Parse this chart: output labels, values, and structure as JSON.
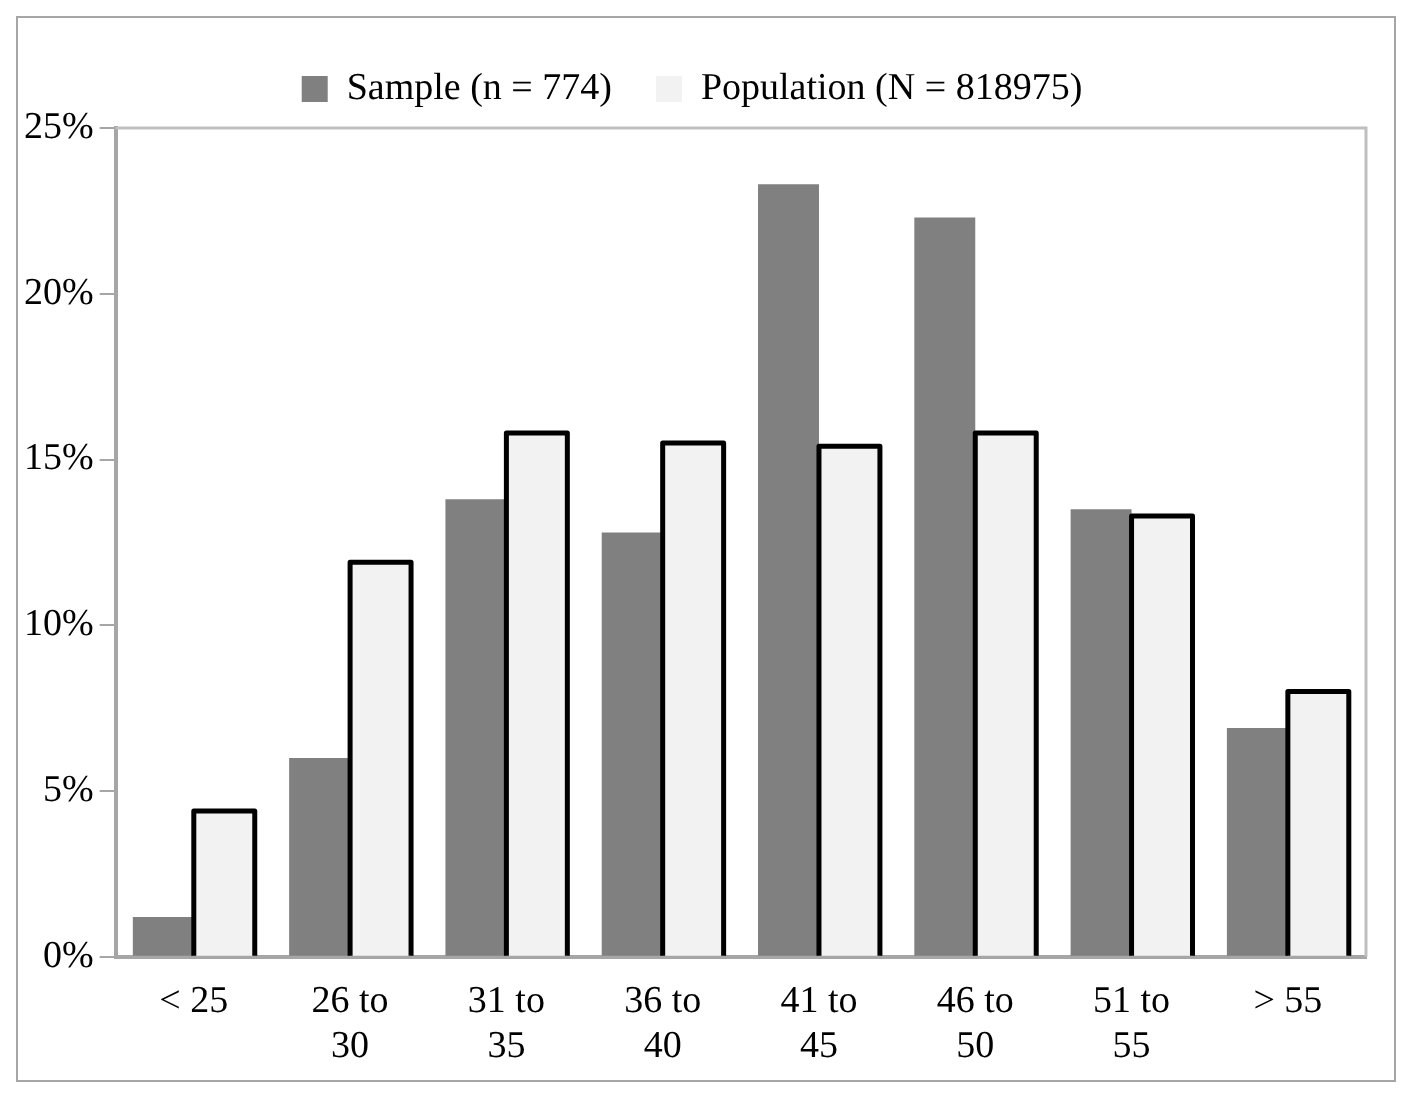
{
  "chart_data": {
    "type": "bar",
    "categories": [
      "< 25",
      "26 to 30",
      "31 to 35",
      "36 to 40",
      "41 to 45",
      "46 to 50",
      "51 to 55",
      "> 55"
    ],
    "series": [
      {
        "name": "Sample (n = 774)",
        "color": "#808080",
        "values": [
          1.2,
          6.0,
          13.8,
          12.8,
          23.3,
          22.3,
          13.5,
          6.9
        ]
      },
      {
        "name": "Population (N = 818975)",
        "color": "#f2f2f2",
        "values": [
          4.4,
          11.9,
          15.8,
          15.5,
          15.4,
          15.8,
          13.3,
          8.0
        ]
      }
    ],
    "ylim": [
      0,
      25
    ],
    "yticks": [
      {
        "value": 0,
        "label": "0%"
      },
      {
        "value": 5,
        "label": "5%"
      },
      {
        "value": 10,
        "label": "10%"
      },
      {
        "value": 15,
        "label": "15%"
      },
      {
        "value": 20,
        "label": "20%"
      },
      {
        "value": 25,
        "label": "25%"
      }
    ],
    "grid": false,
    "legend": "top"
  }
}
